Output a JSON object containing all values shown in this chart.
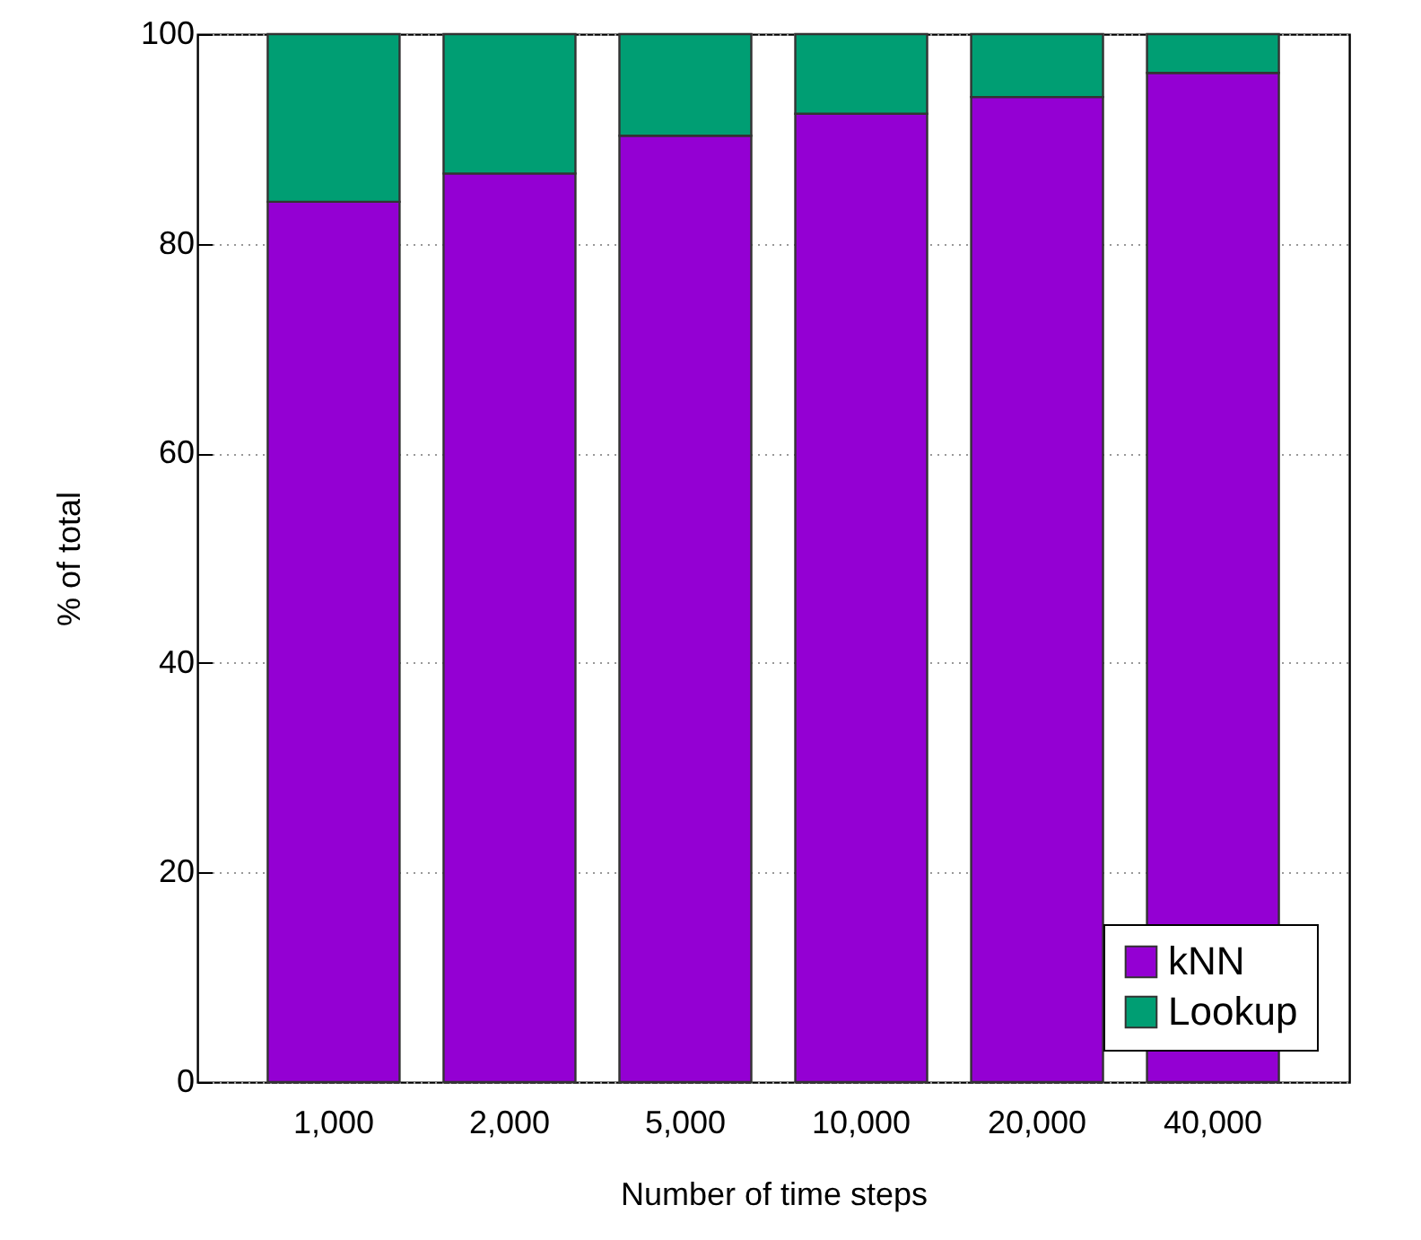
{
  "chart_data": {
    "type": "bar",
    "stacked": true,
    "xlabel": "Number of time steps",
    "ylabel": "% of total",
    "categories": [
      "1,000",
      "2,000",
      "5,000",
      "10,000",
      "20,000",
      "40,000"
    ],
    "series": [
      {
        "name": "kNN",
        "color": "#9400d3",
        "values": [
          84.0,
          86.7,
          90.3,
          92.4,
          94.0,
          96.3
        ]
      },
      {
        "name": "Lookup",
        "color": "#009e73",
        "values": [
          16.0,
          13.3,
          9.7,
          7.6,
          6.0,
          3.7
        ]
      }
    ],
    "ylim": [
      0,
      100
    ],
    "yticks": [
      0,
      20,
      40,
      60,
      80,
      100
    ],
    "grid": "y",
    "legend": "bottom right"
  }
}
